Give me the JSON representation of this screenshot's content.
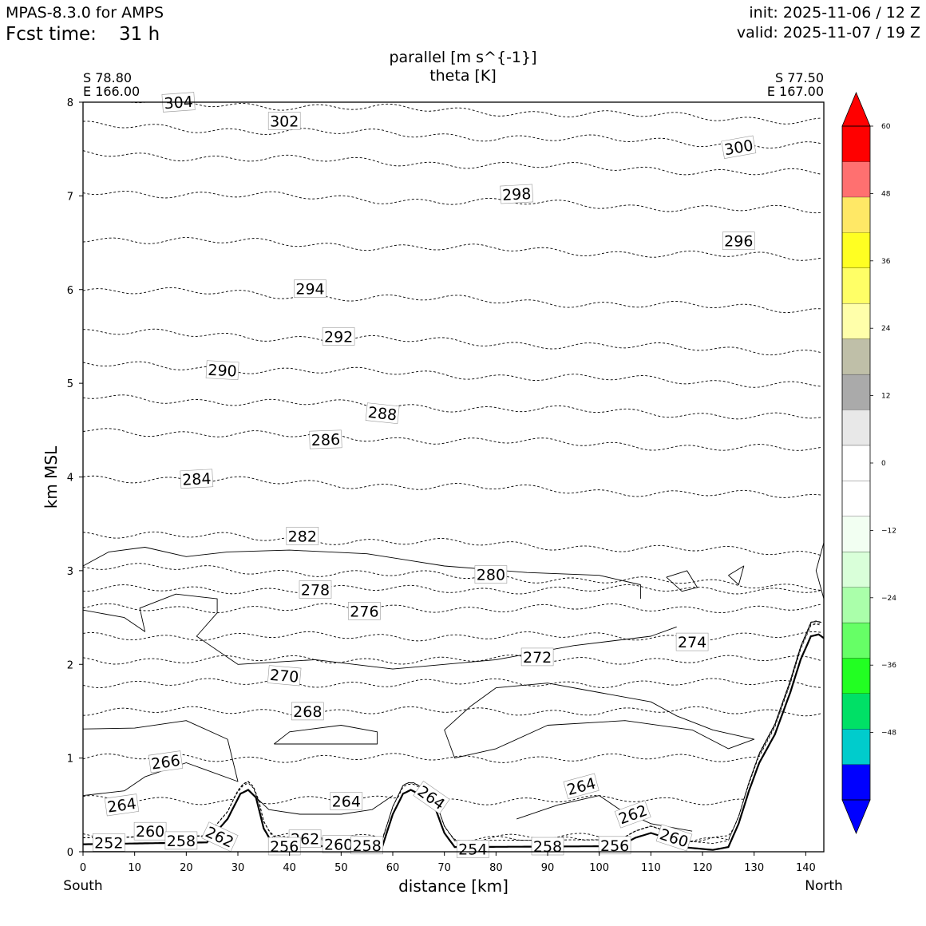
{
  "header": {
    "model": "MPAS-8.3.0 for AMPS",
    "fcst_label": "Fcst time:",
    "fcst_value": "31 h",
    "init": "init: 2025-11-06 / 12 Z",
    "valid": "valid: 2025-11-07 / 19 Z"
  },
  "section": {
    "start_lat": "S 78.80",
    "start_lon": "E 166.00",
    "end_lat": "S 77.50",
    "end_lon": "E 167.00",
    "left_end": "South",
    "right_end": "North"
  },
  "chart_data": {
    "type": "cross-section contour",
    "title_line1": "parallel [m s^{-1}]",
    "title_line2": "theta [K]",
    "xlabel": "distance [km]",
    "ylabel": "km MSL",
    "xlim": [
      0,
      143.5
    ],
    "ylim": [
      0,
      8
    ],
    "x_ticks": [
      "0",
      "10",
      "20",
      "30",
      "40",
      "50",
      "60",
      "70",
      "80",
      "90",
      "100",
      "110",
      "120",
      "130",
      "140"
    ],
    "y_ticks": [
      "0",
      "1",
      "2",
      "3",
      "4",
      "5",
      "6",
      "7",
      "8"
    ],
    "terrain": [
      [
        0,
        0.08
      ],
      [
        24,
        0.1
      ],
      [
        28,
        0.35
      ],
      [
        30.5,
        0.62
      ],
      [
        32,
        0.66
      ],
      [
        33.5,
        0.58
      ],
      [
        35,
        0.25
      ],
      [
        37,
        0.06
      ],
      [
        58,
        0.06
      ],
      [
        60,
        0.4
      ],
      [
        62,
        0.62
      ],
      [
        63.5,
        0.66
      ],
      [
        65,
        0.62
      ],
      [
        68,
        0.5
      ],
      [
        70,
        0.2
      ],
      [
        72,
        0.05
      ],
      [
        104,
        0.06
      ],
      [
        107,
        0.15
      ],
      [
        110,
        0.2
      ],
      [
        113,
        0.15
      ],
      [
        116,
        0.05
      ],
      [
        122,
        0.02
      ],
      [
        125,
        0.05
      ],
      [
        127,
        0.3
      ],
      [
        129,
        0.65
      ],
      [
        131,
        0.95
      ],
      [
        134,
        1.25
      ],
      [
        137,
        1.7
      ],
      [
        139,
        2.05
      ],
      [
        141,
        2.3
      ],
      [
        142.5,
        2.32
      ],
      [
        143.5,
        2.28
      ]
    ],
    "theta_isentropes": [
      {
        "value": 304,
        "z": 8.02
      },
      {
        "value": 302,
        "z": 7.75
      },
      {
        "value": 300,
        "z": 7.45
      },
      {
        "value": 298,
        "z": 7.05
      },
      {
        "value": 296,
        "z": 6.55
      },
      {
        "value": 294,
        "z": 6.0
      },
      {
        "value": 292,
        "z": 5.55
      },
      {
        "value": 290,
        "z": 5.2
      },
      {
        "value": 288,
        "z": 4.85
      },
      {
        "value": 286,
        "z": 4.5
      },
      {
        "value": 284,
        "z": 4.0
      },
      {
        "value": 282,
        "z": 3.4
      },
      {
        "value": 280,
        "z": 3.05
      },
      {
        "value": 278,
        "z": 2.8
      },
      {
        "value": 276,
        "z": 2.6
      },
      {
        "value": 274,
        "z": 2.3
      },
      {
        "value": 272,
        "z": 2.05
      },
      {
        "value": 270,
        "z": 1.8
      },
      {
        "value": 268,
        "z": 1.5
      },
      {
        "value": 266,
        "z": 1.0
      },
      {
        "value": 264,
        "z": 0.55
      },
      {
        "value": 262,
        "z": 0.15
      },
      {
        "value": 260,
        "z": 0.12
      },
      {
        "value": 258,
        "z": 0.06
      }
    ],
    "contour_labels": [
      {
        "text": "304",
        "x": 18.5,
        "y": 8.0,
        "rot": -4
      },
      {
        "text": "302",
        "x": 39,
        "y": 7.8,
        "rot": 0
      },
      {
        "text": "300",
        "x": 127,
        "y": 7.52,
        "rot": -10
      },
      {
        "text": "298",
        "x": 84,
        "y": 7.02,
        "rot": -3
      },
      {
        "text": "296",
        "x": 127,
        "y": 6.52,
        "rot": 0
      },
      {
        "text": "294",
        "x": 44,
        "y": 6.01,
        "rot": 0
      },
      {
        "text": "292",
        "x": 49.5,
        "y": 5.5,
        "rot": 0
      },
      {
        "text": "290",
        "x": 27,
        "y": 5.14,
        "rot": 3
      },
      {
        "text": "288",
        "x": 58,
        "y": 4.68,
        "rot": 6
      },
      {
        "text": "286",
        "x": 47,
        "y": 4.4,
        "rot": -2
      },
      {
        "text": "284",
        "x": 22,
        "y": 3.98,
        "rot": -3
      },
      {
        "text": "282",
        "x": 42.5,
        "y": 3.37,
        "rot": 0
      },
      {
        "text": "280",
        "x": 79,
        "y": 2.96,
        "rot": 0
      },
      {
        "text": "278",
        "x": 45,
        "y": 2.8,
        "rot": 0
      },
      {
        "text": "276",
        "x": 54.5,
        "y": 2.57,
        "rot": 0
      },
      {
        "text": "274",
        "x": 118,
        "y": 2.24,
        "rot": 0
      },
      {
        "text": "272",
        "x": 88,
        "y": 2.08,
        "rot": 0
      },
      {
        "text": "270",
        "x": 39,
        "y": 1.88,
        "rot": 5
      },
      {
        "text": "268",
        "x": 43.5,
        "y": 1.5,
        "rot": 0
      },
      {
        "text": "266",
        "x": 16,
        "y": 0.96,
        "rot": -8
      },
      {
        "text": "264",
        "x": 7.5,
        "y": 0.5,
        "rot": -8
      },
      {
        "text": "264",
        "x": 51,
        "y": 0.54,
        "rot": 0
      },
      {
        "text": "264",
        "x": 67.5,
        "y": 0.58,
        "rot": 35
      },
      {
        "text": "264",
        "x": 96.5,
        "y": 0.7,
        "rot": -15
      },
      {
        "text": "262",
        "x": 26.5,
        "y": 0.16,
        "rot": 25
      },
      {
        "text": "262",
        "x": 43,
        "y": 0.14,
        "rot": 0
      },
      {
        "text": "262",
        "x": 106.5,
        "y": 0.4,
        "rot": -20
      },
      {
        "text": "260",
        "x": 13,
        "y": 0.22,
        "rot": 0
      },
      {
        "text": "260",
        "x": 49.5,
        "y": 0.08,
        "rot": 0
      },
      {
        "text": "260",
        "x": 114.5,
        "y": 0.15,
        "rot": 18
      },
      {
        "text": "258",
        "x": 19,
        "y": 0.12,
        "rot": 0
      },
      {
        "text": "258",
        "x": 55,
        "y": 0.07,
        "rot": 0
      },
      {
        "text": "258",
        "x": 90,
        "y": 0.06,
        "rot": 0
      },
      {
        "text": "256",
        "x": 39,
        "y": 0.06,
        "rot": 0
      },
      {
        "text": "256",
        "x": 103,
        "y": 0.07,
        "rot": 0
      },
      {
        "text": "254",
        "x": 75.5,
        "y": 0.03,
        "rot": 0
      },
      {
        "text": "252",
        "x": 5,
        "y": 0.1,
        "rot": 0
      }
    ],
    "colorbar": {
      "min": -60,
      "max": 60,
      "step": 6,
      "tick_values": [
        -48,
        -36,
        -24,
        -12,
        0,
        12,
        24,
        36,
        48,
        60
      ],
      "tick_labels": [
        "−48",
        "−36",
        "−24",
        "−12",
        "0",
        "12",
        "24",
        "36",
        "48",
        "60"
      ],
      "colors": [
        "#0000ff",
        "#00cccc",
        "#00e066",
        "#22ff22",
        "#66ff66",
        "#aaffaa",
        "#d9ffd9",
        "#f2fff2",
        "#ffffff",
        "#ffffff",
        "#e8e8e8",
        "#aaaaaa",
        "#bfbfa8",
        "#ffffaa",
        "#ffff66",
        "#ffff22",
        "#ffe866",
        "#ff7070",
        "#ff0000"
      ],
      "under_color": "#0000ff",
      "over_color": "#ff0000"
    }
  }
}
